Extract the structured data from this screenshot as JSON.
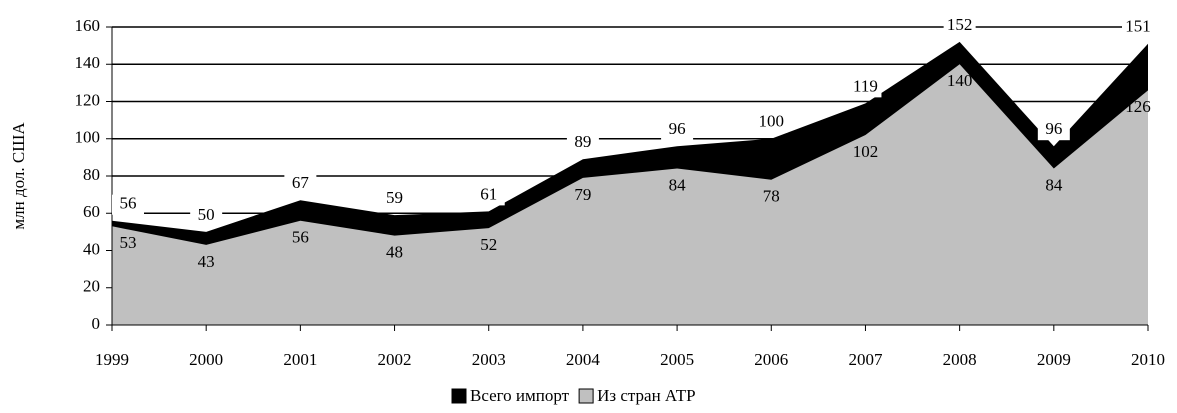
{
  "chart_data": {
    "type": "area",
    "ylabel": "млн дол. США",
    "categories": [
      "1999",
      "2000",
      "2001",
      "2002",
      "2003",
      "2004",
      "2005",
      "2006",
      "2007",
      "2008",
      "2009",
      "2010"
    ],
    "series": [
      {
        "name": "Всего импорт",
        "color": "#000000",
        "values": [
          56,
          50,
          67,
          59,
          61,
          89,
          96,
          100,
          119,
          152,
          96,
          151
        ]
      },
      {
        "name": "Из стран АТР",
        "color": "#c0c0c0",
        "values": [
          53,
          43,
          56,
          48,
          52,
          79,
          84,
          78,
          102,
          140,
          84,
          126
        ]
      }
    ],
    "ylim": [
      0,
      160
    ],
    "yticks": [
      0,
      20,
      40,
      60,
      80,
      100,
      120,
      140,
      160
    ],
    "grid": true,
    "legend": "bottom"
  }
}
